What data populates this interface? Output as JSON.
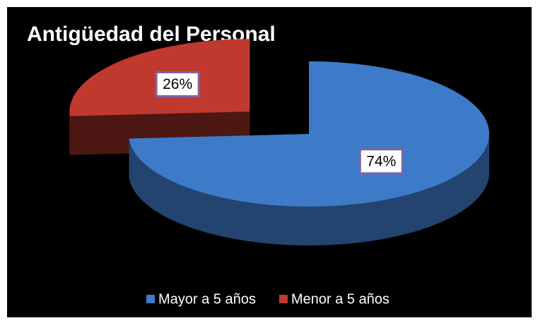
{
  "chart_data": {
    "type": "pie",
    "title": "Antigüedad del Personal",
    "categories": [
      "Mayor a 5 años",
      "Menor a 5 años"
    ],
    "values": [
      74,
      26
    ],
    "value_labels": [
      "74%",
      "26%"
    ],
    "colors": [
      "#3d7bc9",
      "#c0392f"
    ],
    "legend": "bottom"
  }
}
